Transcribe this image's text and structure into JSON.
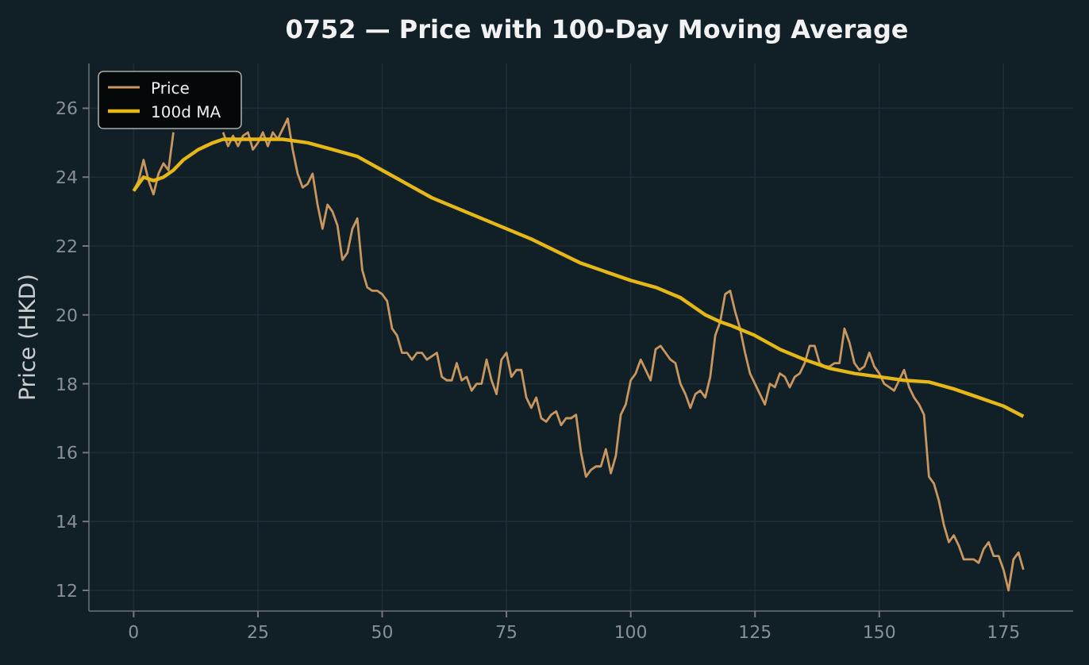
{
  "chart_data": {
    "type": "line",
    "title": "0752 — Price with 100-Day Moving Average",
    "ylabel": "Price (HKD)",
    "xlim": [
      -9,
      189
    ],
    "ylim": [
      11.4,
      27.3
    ],
    "xticks": [
      0,
      25,
      50,
      75,
      100,
      125,
      150,
      175
    ],
    "yticks": [
      12,
      14,
      16,
      18,
      20,
      22,
      24,
      26
    ],
    "grid": true,
    "legend": "top left",
    "series": [
      {
        "name": "Price",
        "color": "#c8965f",
        "x": [
          0,
          1,
          2,
          3,
          4,
          5,
          6,
          7,
          8,
          9,
          10,
          11,
          12,
          13,
          14,
          15,
          16,
          17,
          18,
          19,
          20,
          21,
          22,
          23,
          24,
          25,
          26,
          27,
          28,
          29,
          30,
          31,
          32,
          33,
          34,
          35,
          36,
          37,
          38,
          39,
          40,
          41,
          42,
          43,
          44,
          45,
          46,
          47,
          48,
          49,
          50,
          51,
          52,
          53,
          54,
          55,
          56,
          57,
          58,
          59,
          60,
          61,
          62,
          63,
          64,
          65,
          66,
          67,
          68,
          69,
          70,
          71,
          72,
          73,
          74,
          75,
          76,
          77,
          78,
          79,
          80,
          81,
          82,
          83,
          84,
          85,
          86,
          87,
          88,
          89,
          90,
          91,
          92,
          93,
          94,
          95,
          96,
          97,
          98,
          99,
          100,
          101,
          102,
          103,
          104,
          105,
          106,
          107,
          108,
          109,
          110,
          111,
          112,
          113,
          114,
          115,
          116,
          117,
          118,
          119,
          120,
          121,
          122,
          123,
          124,
          125,
          126,
          127,
          128,
          129,
          130,
          131,
          132,
          133,
          134,
          135,
          136,
          137,
          138,
          139,
          140,
          141,
          142,
          143,
          144,
          145,
          146,
          147,
          148,
          149,
          150,
          151,
          152,
          153,
          154,
          155,
          156,
          157,
          158,
          159,
          160,
          161,
          162,
          163,
          164,
          165,
          166,
          167,
          168,
          169,
          170,
          171,
          172,
          173,
          174,
          175,
          176,
          177,
          178,
          179
        ],
        "values": [
          23.6,
          23.9,
          24.5,
          23.9,
          23.5,
          24.1,
          24.4,
          24.2,
          25.3,
          null,
          null,
          null,
          null,
          null,
          null,
          null,
          null,
          null,
          25.3,
          24.9,
          25.2,
          24.9,
          25.2,
          25.3,
          24.8,
          25.0,
          25.3,
          24.9,
          25.3,
          25.1,
          25.4,
          25.7,
          24.8,
          24.1,
          23.7,
          23.8,
          24.1,
          23.2,
          22.5,
          23.2,
          23.0,
          22.6,
          21.6,
          21.8,
          22.5,
          22.8,
          21.3,
          20.8,
          20.7,
          20.7,
          20.6,
          20.4,
          19.6,
          19.4,
          18.9,
          18.9,
          18.7,
          18.9,
          18.9,
          18.7,
          18.8,
          18.9,
          18.2,
          18.1,
          18.1,
          18.6,
          18.1,
          18.2,
          17.8,
          18.0,
          18.0,
          18.7,
          18.1,
          17.7,
          18.7,
          18.9,
          18.2,
          18.4,
          18.4,
          17.6,
          17.3,
          17.6,
          17.0,
          16.9,
          17.1,
          17.2,
          16.8,
          17.0,
          17.0,
          17.1,
          16.0,
          15.3,
          15.5,
          15.6,
          15.6,
          16.1,
          15.4,
          15.9,
          17.1,
          17.4,
          18.1,
          18.3,
          18.7,
          18.4,
          18.1,
          19.0,
          19.1,
          18.9,
          18.7,
          18.6,
          18.0,
          17.7,
          17.3,
          17.7,
          17.8,
          17.6,
          18.2,
          19.4,
          19.8,
          20.6,
          20.7,
          20.1,
          19.6,
          18.9,
          18.3,
          18.0,
          17.7,
          17.4,
          18.0,
          17.9,
          18.3,
          18.2,
          17.9,
          18.2,
          18.3,
          18.6,
          19.1,
          19.1,
          18.6,
          18.5,
          18.5,
          18.6,
          18.6,
          19.6,
          19.2,
          18.6,
          18.4,
          18.5,
          18.9,
          18.5,
          18.3,
          18.0,
          17.9,
          17.8,
          18.1,
          18.4,
          17.9,
          17.6,
          17.4,
          17.1,
          15.3,
          15.1,
          14.6,
          13.9,
          13.4,
          13.6,
          13.3,
          12.9,
          12.9,
          12.9,
          12.8,
          13.2,
          13.4,
          13.0,
          13.0,
          12.6,
          12.0,
          12.9,
          13.1,
          12.6
        ]
      },
      {
        "name": "100d MA",
        "color": "#e6b817",
        "x": [
          0,
          2,
          4,
          6,
          8,
          10,
          13,
          16,
          18,
          20,
          30,
          35,
          40,
          45,
          50,
          55,
          60,
          70,
          80,
          90,
          100,
          105,
          110,
          115,
          118,
          120,
          125,
          130,
          135,
          140,
          145,
          150,
          155,
          160,
          165,
          170,
          175,
          179
        ],
        "values": [
          23.6,
          24.0,
          23.9,
          24.0,
          24.2,
          24.5,
          24.8,
          25.0,
          25.1,
          25.1,
          25.1,
          25.0,
          24.8,
          24.6,
          24.2,
          23.8,
          23.4,
          22.8,
          22.2,
          21.5,
          21.0,
          20.8,
          20.5,
          20.0,
          19.8,
          19.7,
          19.4,
          19.0,
          18.7,
          18.45,
          18.3,
          18.2,
          18.1,
          18.05,
          17.85,
          17.6,
          17.35,
          17.05
        ]
      }
    ]
  }
}
